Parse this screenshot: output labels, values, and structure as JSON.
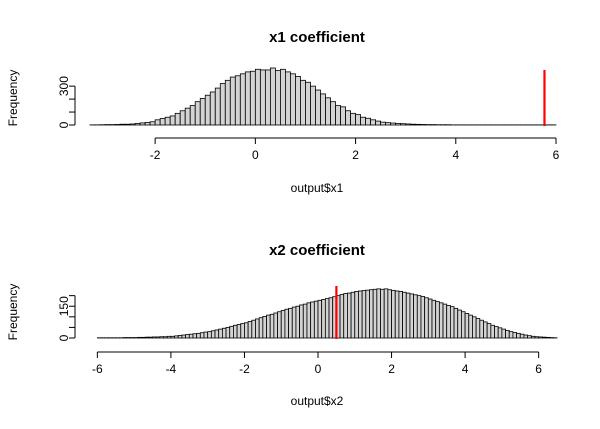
{
  "chart_data": [
    {
      "type": "histogram",
      "title": "x1 coefficient",
      "xlabel": "output$x1",
      "ylabel": "Frequency",
      "xlim": [
        -3.3,
        6.0
      ],
      "ylim": [
        0,
        440
      ],
      "x_ticks": [
        -2,
        0,
        2,
        4,
        6
      ],
      "y_ticks": [
        0,
        100,
        200,
        300
      ],
      "y_tick_labels": [
        "0",
        "",
        "",
        "300"
      ],
      "bar_fill": "#d3d3d3",
      "bar_stroke": "#000000",
      "bin_width": 0.1,
      "bins_start": -3.3,
      "counts": [
        1,
        1,
        2,
        3,
        3,
        4,
        6,
        6,
        8,
        12,
        16,
        20,
        25,
        40,
        50,
        60,
        70,
        90,
        110,
        130,
        150,
        180,
        205,
        230,
        255,
        285,
        320,
        345,
        370,
        380,
        395,
        410,
        415,
        430,
        425,
        425,
        440,
        420,
        430,
        410,
        395,
        375,
        345,
        330,
        300,
        270,
        240,
        210,
        180,
        150,
        140,
        110,
        90,
        80,
        60,
        52,
        40,
        30,
        22,
        18,
        15,
        12,
        10,
        8,
        6,
        5,
        4,
        3,
        3,
        2,
        2,
        2,
        1,
        1,
        1,
        1,
        1,
        1,
        1,
        1,
        1,
        1,
        1,
        1,
        1,
        1,
        1,
        1,
        1,
        1,
        1,
        1,
        1
      ],
      "reference_line": {
        "value": 5.77,
        "color": "#ff0000"
      }
    },
    {
      "type": "histogram",
      "title": "x2 coefficient",
      "xlabel": "output$x2",
      "ylabel": "Frequency",
      "xlim": [
        -6.2,
        6.2
      ],
      "ylim": [
        0,
        255
      ],
      "x_ticks": [
        -6,
        -4,
        -2,
        0,
        2,
        4,
        6
      ],
      "y_ticks": [
        0,
        50,
        100,
        150,
        200
      ],
      "y_tick_labels": [
        "0",
        "",
        "",
        "150",
        ""
      ],
      "bar_fill": "#d3d3d3",
      "bar_stroke": "#000000",
      "bin_width": 0.1,
      "bins_start": -6.2,
      "counts": [
        0,
        0,
        1,
        1,
        1,
        1,
        1,
        1,
        1,
        2,
        2,
        2,
        2,
        3,
        3,
        4,
        4,
        5,
        5,
        6,
        6,
        8,
        8,
        10,
        12,
        14,
        16,
        18,
        20,
        22,
        25,
        28,
        30,
        34,
        38,
        42,
        46,
        50,
        55,
        60,
        64,
        68,
        72,
        78,
        84,
        90,
        96,
        102,
        108,
        112,
        118,
        124,
        130,
        136,
        140,
        146,
        150,
        156,
        160,
        166,
        170,
        174,
        178,
        182,
        186,
        190,
        195,
        200,
        205,
        210,
        212,
        216,
        220,
        222,
        224,
        226,
        228,
        230,
        232,
        230,
        232,
        228,
        225,
        222,
        220,
        216,
        212,
        208,
        204,
        200,
        196,
        190,
        184,
        178,
        172,
        166,
        160,
        154,
        148,
        140,
        132,
        124,
        116,
        108,
        100,
        92,
        84,
        76,
        68,
        60,
        54,
        48,
        42,
        36,
        30,
        26,
        22,
        18,
        14,
        11,
        8,
        6,
        5,
        4,
        3,
        2,
        1
      ],
      "reference_line": {
        "value": 0.5,
        "color": "#ff0000"
      }
    }
  ]
}
